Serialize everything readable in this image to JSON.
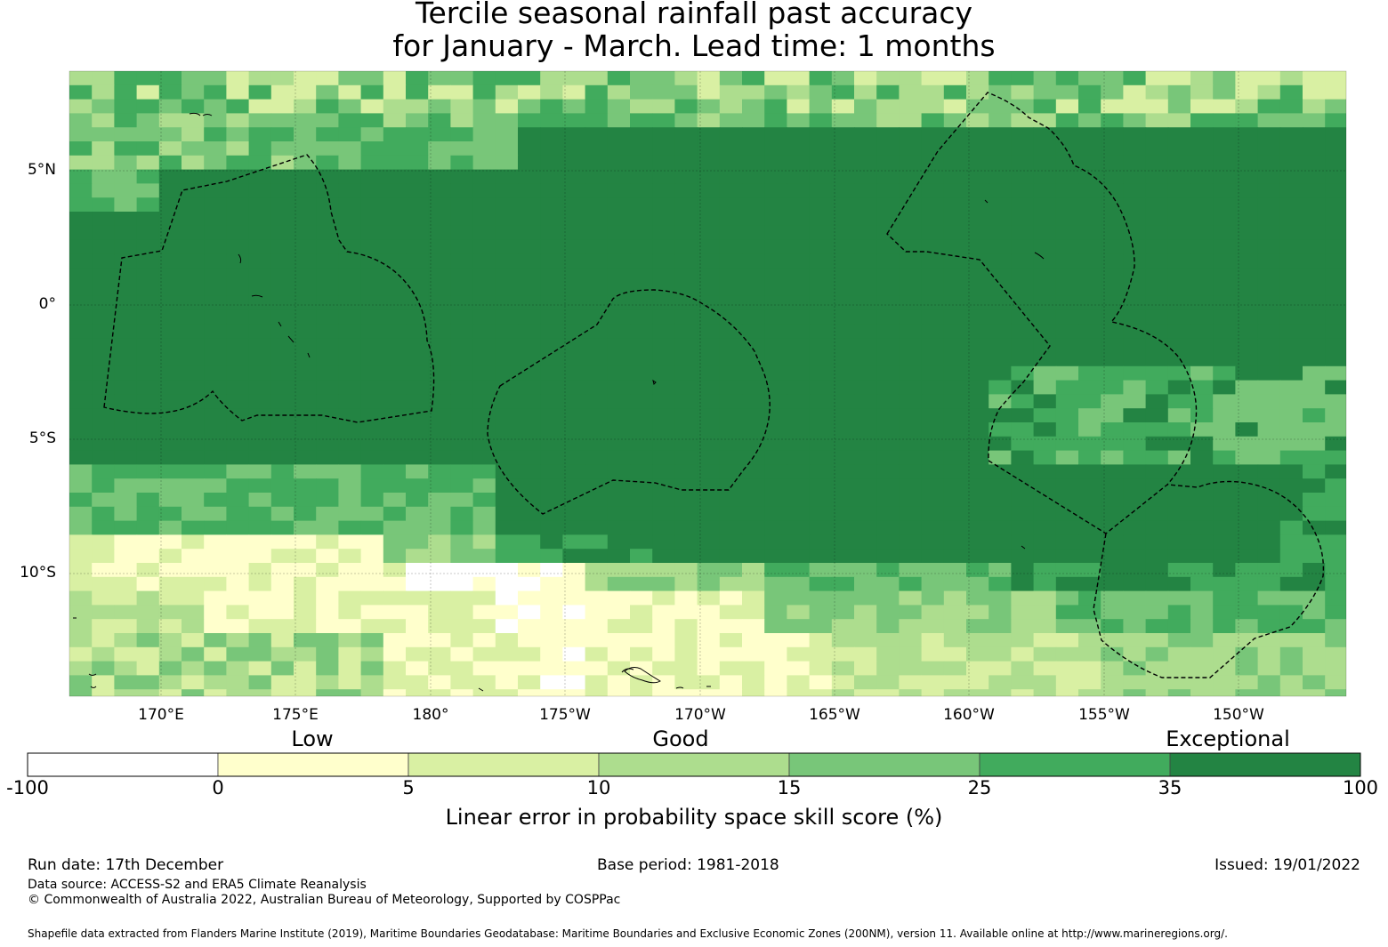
{
  "title": {
    "line1": "Tercile seasonal rainfall past accuracy",
    "line2": "for January - March. Lead time: 1 months"
  },
  "map": {
    "lat_labels": [
      "5°N",
      "0°",
      "5°S",
      "10°S"
    ],
    "lon_labels": [
      "170°E",
      "175°E",
      "180°",
      "175°W",
      "170°W",
      "165°W",
      "160°W",
      "155°W",
      "150°W"
    ],
    "extent": {
      "lon_min": 166.6,
      "lon_max": 213.9,
      "lat_min": -14.6,
      "lat_max": 8.6
    },
    "cell_deg": 0.83,
    "features": [
      "eez-boundary-kiribati-gilbert",
      "eez-boundary-kiribati-phoenix",
      "eez-boundary-kiribati-line",
      "eez-boundary-cook-islands",
      "coastline-islands"
    ]
  },
  "legend": {
    "categories": [
      "Low",
      "Good",
      "Exceptional"
    ],
    "ticks": [
      "-100",
      "0",
      "5",
      "10",
      "15",
      "25",
      "35",
      "100"
    ],
    "colors": [
      "#ffffff",
      "#ffffcc",
      "#d9f0a3",
      "#addd8e",
      "#78c679",
      "#41ab5d",
      "#238443"
    ],
    "title": "Linear error in probability space skill score (%)"
  },
  "footer": {
    "run_date": "Run date: 17th December",
    "base_period": "Base period: 1981-2018",
    "issued": "Issued: 19/01/2022",
    "data_source": "Data source: ACCESS-S2 and ERA5 Climate Reanalysis",
    "copyright": "© Commonwealth of Australia 2022, Australian Bureau of Meteorology, Supported by COSPPac",
    "shapefile": "Shapefile data extracted from Flanders Marine Institute (2019), Maritime Boundaries Geodatabase: Maritime Boundaries and Exclusive Economic Zones (200NM), version 11. Available online at http://www.marineregions.org/."
  }
}
